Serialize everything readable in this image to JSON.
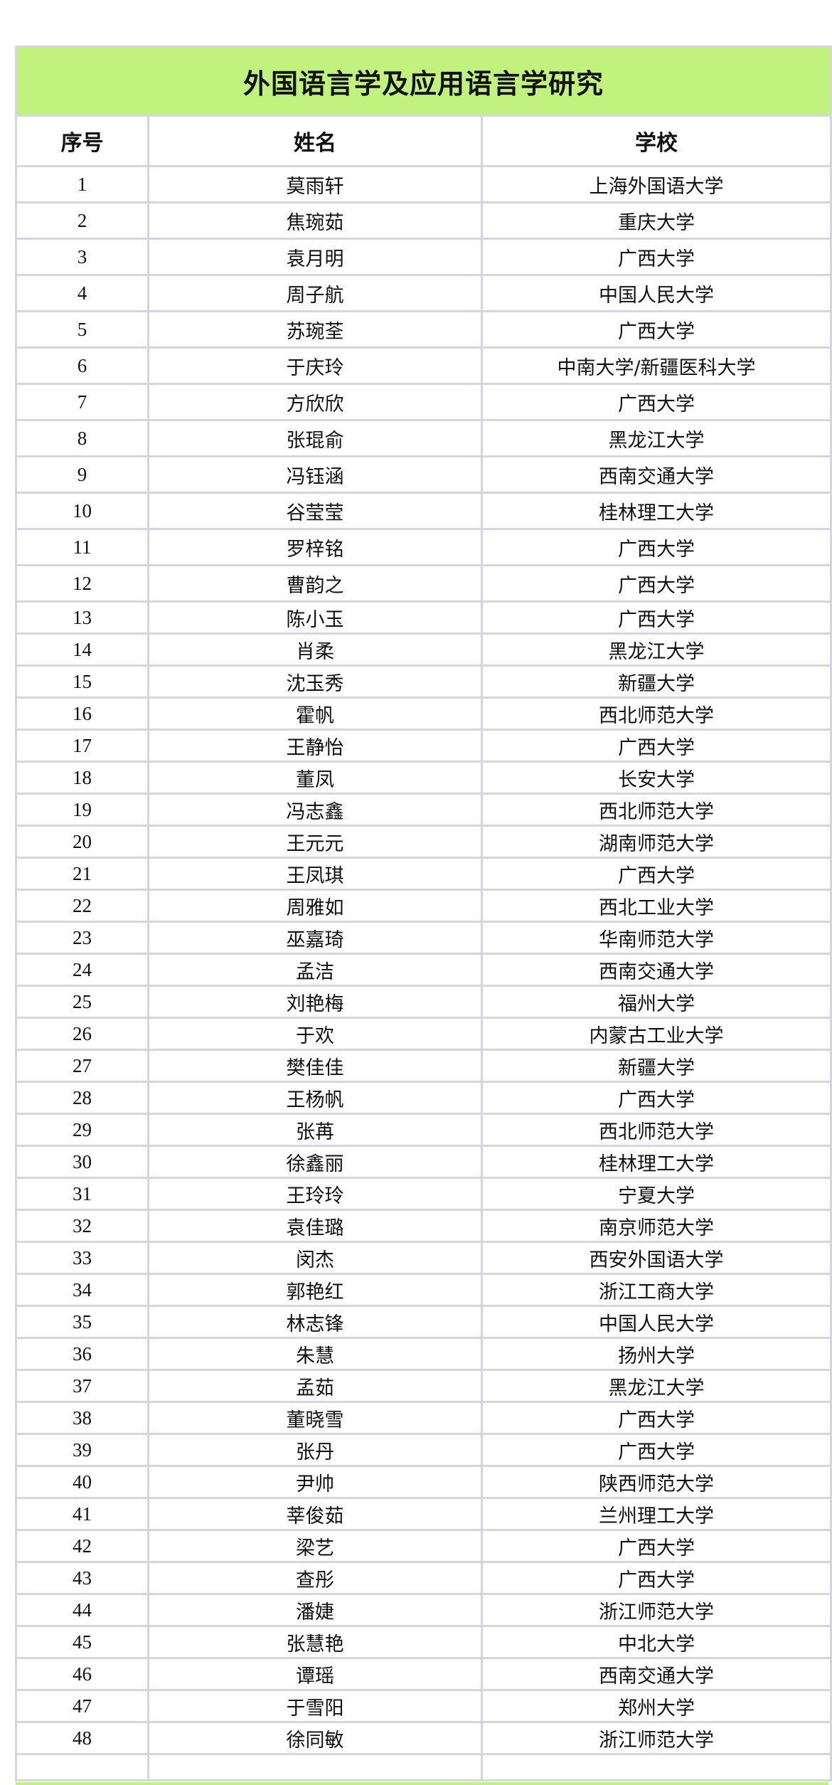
{
  "title": "外国语言学及应用语言学研究",
  "columns": [
    "序号",
    "姓名",
    "学校"
  ],
  "colors": {
    "title_background": "#c2f27e",
    "grid": "#d5d5e1"
  },
  "rows": [
    [
      "1",
      "莫雨轩",
      "上海外国语大学"
    ],
    [
      "2",
      "焦琬茹",
      "重庆大学"
    ],
    [
      "3",
      "袁月明",
      "广西大学"
    ],
    [
      "4",
      "周子航",
      "中国人民大学"
    ],
    [
      "5",
      "苏琬荃",
      "广西大学"
    ],
    [
      "6",
      "于庆玲",
      "中南大学/新疆医科大学"
    ],
    [
      "7",
      "方欣欣",
      "广西大学"
    ],
    [
      "8",
      "张琨俞",
      "黑龙江大学"
    ],
    [
      "9",
      "冯钰涵",
      "西南交通大学"
    ],
    [
      "10",
      "谷莹莹",
      "桂林理工大学"
    ],
    [
      "11",
      "罗梓铭",
      "广西大学"
    ],
    [
      "12",
      "曹韵之",
      "广西大学"
    ],
    [
      "13",
      "陈小玉",
      "广西大学"
    ],
    [
      "14",
      "肖柔",
      "黑龙江大学"
    ],
    [
      "15",
      "沈玉秀",
      "新疆大学"
    ],
    [
      "16",
      "霍帆",
      "西北师范大学"
    ],
    [
      "17",
      "王静怡",
      "广西大学"
    ],
    [
      "18",
      "董凤",
      "长安大学"
    ],
    [
      "19",
      "冯志鑫",
      "西北师范大学"
    ],
    [
      "20",
      "王元元",
      "湖南师范大学"
    ],
    [
      "21",
      "王凤琪",
      "广西大学"
    ],
    [
      "22",
      "周雅如",
      "西北工业大学"
    ],
    [
      "23",
      "巫嘉琦",
      "华南师范大学"
    ],
    [
      "24",
      "孟洁",
      "西南交通大学"
    ],
    [
      "25",
      "刘艳梅",
      "福州大学"
    ],
    [
      "26",
      "于欢",
      "内蒙古工业大学"
    ],
    [
      "27",
      "樊佳佳",
      "新疆大学"
    ],
    [
      "28",
      "王杨帆",
      "广西大学"
    ],
    [
      "29",
      "张苒",
      "西北师范大学"
    ],
    [
      "30",
      "徐鑫丽",
      "桂林理工大学"
    ],
    [
      "31",
      "王玲玲",
      "宁夏大学"
    ],
    [
      "32",
      "袁佳璐",
      "南京师范大学"
    ],
    [
      "33",
      "闵杰",
      "西安外国语大学"
    ],
    [
      "34",
      "郭艳红",
      "浙江工商大学"
    ],
    [
      "35",
      "林志锋",
      "中国人民大学"
    ],
    [
      "36",
      "朱慧",
      "扬州大学"
    ],
    [
      "37",
      "孟茹",
      "黑龙江大学"
    ],
    [
      "38",
      "董晓雪",
      "广西大学"
    ],
    [
      "39",
      "张丹",
      "广西大学"
    ],
    [
      "40",
      "尹帅",
      "陕西师范大学"
    ],
    [
      "41",
      "莘俊茹",
      "兰州理工大学"
    ],
    [
      "42",
      "梁艺",
      "广西大学"
    ],
    [
      "43",
      "查彤",
      "广西大学"
    ],
    [
      "44",
      "潘婕",
      "浙江师范大学"
    ],
    [
      "45",
      "张慧艳",
      "中北大学"
    ],
    [
      "46",
      "谭瑶",
      "西南交通大学"
    ],
    [
      "47",
      "于雪阳",
      "郑州大学"
    ],
    [
      "48",
      "徐同敏",
      "浙江师范大学"
    ]
  ]
}
